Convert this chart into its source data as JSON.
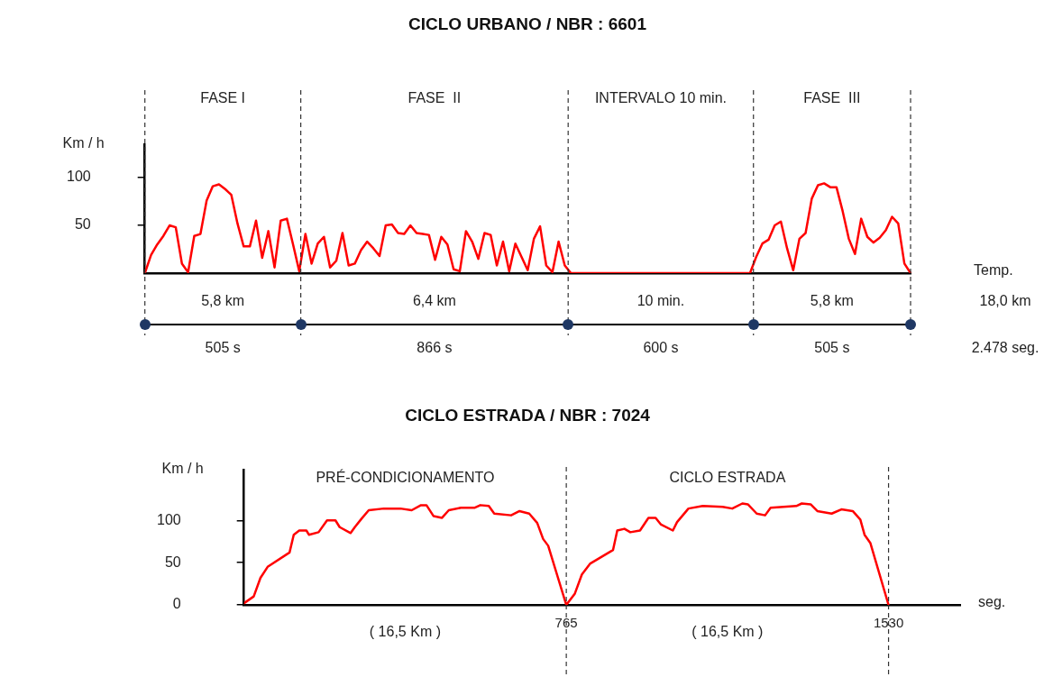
{
  "chart_data": [
    {
      "type": "line",
      "title": "CICLO URBANO / NBR : 6601",
      "xlabel": "Temp.",
      "ylabel": "Km / h",
      "color": "#ff0000",
      "marker": "none",
      "tick_labels": "y",
      "ylim": [
        0,
        135
      ],
      "yticks": [
        50,
        100
      ],
      "categories": [
        null,
        null,
        null,
        null,
        null,
        null,
        null,
        null,
        null,
        null,
        null,
        null,
        null,
        null,
        null,
        null,
        null,
        null,
        null,
        null,
        null,
        null,
        null,
        null,
        null,
        null,
        null,
        null,
        null,
        null,
        null,
        null,
        null,
        null,
        null,
        null,
        null,
        null,
        null,
        null,
        null,
        null,
        null,
        null,
        null,
        null,
        null,
        null,
        null,
        null,
        null,
        null,
        null,
        null,
        null,
        null,
        null,
        null,
        null,
        null,
        null,
        null,
        null,
        null,
        null,
        null,
        null,
        null,
        null,
        null,
        null,
        null,
        null,
        null,
        null,
        null,
        null,
        null,
        null,
        null,
        null,
        null,
        null,
        null,
        null,
        null,
        null,
        null,
        null,
        null,
        null,
        null,
        null,
        null,
        null,
        null,
        null,
        null,
        null,
        null,
        null,
        null,
        null,
        null,
        null,
        null,
        null,
        null,
        null,
        null,
        null,
        null,
        null,
        null,
        null,
        null,
        null,
        null,
        null,
        null,
        null,
        null,
        null,
        null,
        null
      ],
      "values": [
        0,
        19,
        30,
        39,
        50,
        48,
        10,
        1,
        39,
        41,
        76,
        91,
        93,
        88,
        82,
        52,
        28,
        28,
        55,
        16,
        44,
        6,
        55,
        57,
        30,
        2,
        41,
        10,
        31,
        38,
        6,
        13,
        42,
        8,
        10,
        24,
        33,
        26,
        18,
        50,
        51,
        42,
        41,
        50,
        42,
        41,
        40,
        14,
        38,
        30,
        4,
        2,
        44,
        33,
        15,
        42,
        40,
        8,
        33,
        2,
        31,
        17,
        3,
        36,
        49,
        8,
        1,
        33,
        8,
        0,
        0,
        0,
        0,
        0,
        0,
        0,
        0,
        0,
        0,
        0,
        0,
        0,
        0,
        0,
        0,
        0,
        0,
        0,
        0,
        0,
        0,
        0,
        0,
        0,
        0,
        0,
        0,
        0,
        0,
        17,
        31,
        35,
        50,
        54,
        26,
        3,
        36,
        42,
        78,
        92,
        94,
        90,
        90,
        65,
        36,
        20,
        57,
        38,
        32,
        37,
        45,
        59,
        52,
        10,
        0
      ],
      "annotations": [
        "FASE I",
        "FASE  II",
        "INTERVALO 10 min.",
        "FASE  III",
        "5,8 km",
        "6,4 km",
        "10 min.",
        "5,8 km",
        "18,0 km",
        "505 s",
        "866 s",
        "600 s",
        "505 s",
        "2.478 seg."
      ]
    },
    {
      "type": "line",
      "title": "CICLO ESTRADA / NBR : 7024",
      "xlabel": "seg.",
      "ylabel": "Km / h",
      "color": "#ff0000",
      "marker": "none",
      "xlim": [
        0,
        1700
      ],
      "ylim": [
        0,
        160
      ],
      "yticks": [
        0,
        50,
        100
      ],
      "xticks": [
        765,
        1530
      ],
      "x": [
        0,
        23,
        39,
        56,
        108,
        118,
        131,
        148,
        154,
        177,
        197,
        217,
        227,
        253,
        263,
        279,
        296,
        332,
        371,
        398,
        420,
        433,
        450,
        470,
        486,
        515,
        548,
        561,
        581,
        594,
        634,
        654,
        677,
        696,
        710,
        722,
        765,
        785,
        802,
        822,
        876,
        886,
        903,
        917,
        940,
        960,
        977,
        990,
        1018,
        1028,
        1055,
        1089,
        1136,
        1159,
        1183,
        1196,
        1217,
        1237,
        1250,
        1311,
        1324,
        1345,
        1361,
        1395,
        1418,
        1445,
        1463,
        1473,
        1487,
        1530
      ],
      "values": [
        2,
        10,
        32,
        45,
        62,
        83,
        88,
        88,
        83,
        86,
        100,
        100,
        92,
        85,
        92,
        102,
        112,
        114,
        114,
        112,
        118,
        118,
        105,
        103,
        112,
        115,
        115,
        118,
        117,
        108,
        106,
        111,
        108,
        97,
        78,
        70,
        0,
        13,
        36,
        49,
        65,
        88,
        90,
        86,
        88,
        103,
        103,
        95,
        88,
        98,
        114,
        117,
        116,
        114,
        120,
        119,
        108,
        106,
        115,
        117,
        120,
        119,
        111,
        108,
        113,
        111,
        101,
        83,
        73,
        0
      ],
      "ref_lines": [
        {
          "axis": "x",
          "value": 765,
          "line_style": "dashed",
          "color": "#333333"
        },
        {
          "axis": "x",
          "value": 1530,
          "line_style": "dashed",
          "color": "#333333"
        }
      ],
      "annotations": [
        "PRÉ-CONDICIONAMENTO",
        "CICLO ESTRADA",
        "( 16,5 Km )",
        "( 16,5 Km )"
      ]
    }
  ]
}
